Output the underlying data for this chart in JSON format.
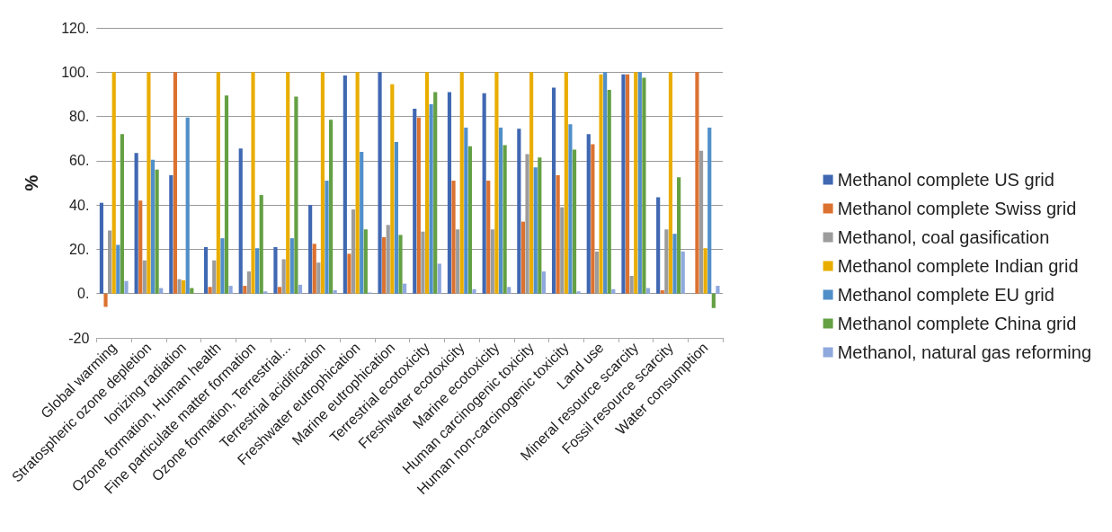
{
  "chart_data": {
    "type": "bar",
    "ylabel": "%",
    "categories": [
      "Global warming",
      "Stratospheric ozone depletion",
      "Ionizing radiation",
      "Ozone formation, Human health",
      "Fine particulate matter formation",
      "Ozone formation, Terrestrial...",
      "Terrestrial acidification",
      "Freshwater eutrophication",
      "Marine eutrophication",
      "Terrestrial ecotoxicity",
      "Freshwater ecotoxicity",
      "Marine ecotoxicity",
      "Human carcinogenic toxicity",
      "Human non-carcinogenic toxicity",
      "Land use",
      "Mineral resource scarcity",
      "Fossil resource scarcity",
      "Water consumption"
    ],
    "series": [
      {
        "name": "Methanol complete US grid",
        "color": "#4068b2",
        "values": [
          41,
          63.5,
          53.5,
          21,
          65.5,
          21,
          40,
          98.5,
          100,
          83.5,
          91,
          90.5,
          74.5,
          93,
          72,
          99,
          43.5,
          0
        ]
      },
      {
        "name": "Methanol complete Swiss grid",
        "color": "#dc7230",
        "values": [
          -6,
          42,
          100,
          3,
          3.5,
          3,
          22.5,
          18,
          25.5,
          79.5,
          51,
          51,
          32.5,
          53.5,
          67.5,
          99,
          1.5,
          100
        ]
      },
      {
        "name": "Methanol, coal gasification",
        "color": "#9c9c9c",
        "values": [
          28.5,
          15,
          6.5,
          15,
          10,
          15.5,
          14,
          38,
          31,
          28,
          29,
          29,
          63,
          39,
          19,
          8,
          29,
          64.5
        ]
      },
      {
        "name": "Methanol complete Indian grid",
        "color": "#e9ad00",
        "values": [
          100,
          100,
          6,
          100,
          100,
          100,
          100,
          100,
          94.5,
          100,
          100,
          100,
          100,
          100,
          99,
          100,
          100,
          20.5
        ]
      },
      {
        "name": "Methanol complete EU grid",
        "color": "#518fc9",
        "values": [
          22,
          60.5,
          79.5,
          25,
          20.5,
          25,
          51,
          64,
          68.5,
          85.5,
          75,
          75,
          57,
          76.5,
          100,
          100,
          27,
          75
        ]
      },
      {
        "name": "Methanol complete China grid",
        "color": "#64a044",
        "values": [
          72,
          56,
          2.5,
          89.5,
          44.5,
          89,
          78.5,
          29,
          26.5,
          91,
          66.5,
          67,
          61.5,
          65,
          92,
          97.5,
          52.5,
          -6.5
        ]
      },
      {
        "name": "Methanol, natural gas reforming",
        "color": "#8fa8dd",
        "values": [
          5.7,
          2.5,
          0,
          3.5,
          1,
          4,
          1.5,
          0.5,
          4.5,
          13.5,
          2,
          3,
          10,
          1,
          2,
          2.5,
          19,
          3.5
        ]
      }
    ],
    "ylim": [
      -20,
      120
    ],
    "yticks": [
      {
        "value": -20,
        "label": "-20"
      },
      {
        "value": 0,
        "label": "0."
      },
      {
        "value": 20,
        "label": "20."
      },
      {
        "value": 40,
        "label": "40."
      },
      {
        "value": 60,
        "label": "60."
      },
      {
        "value": 80,
        "label": "80."
      },
      {
        "value": 100,
        "label": "100."
      },
      {
        "value": 120,
        "label": "120."
      }
    ],
    "grid": "y",
    "legend": "right"
  }
}
